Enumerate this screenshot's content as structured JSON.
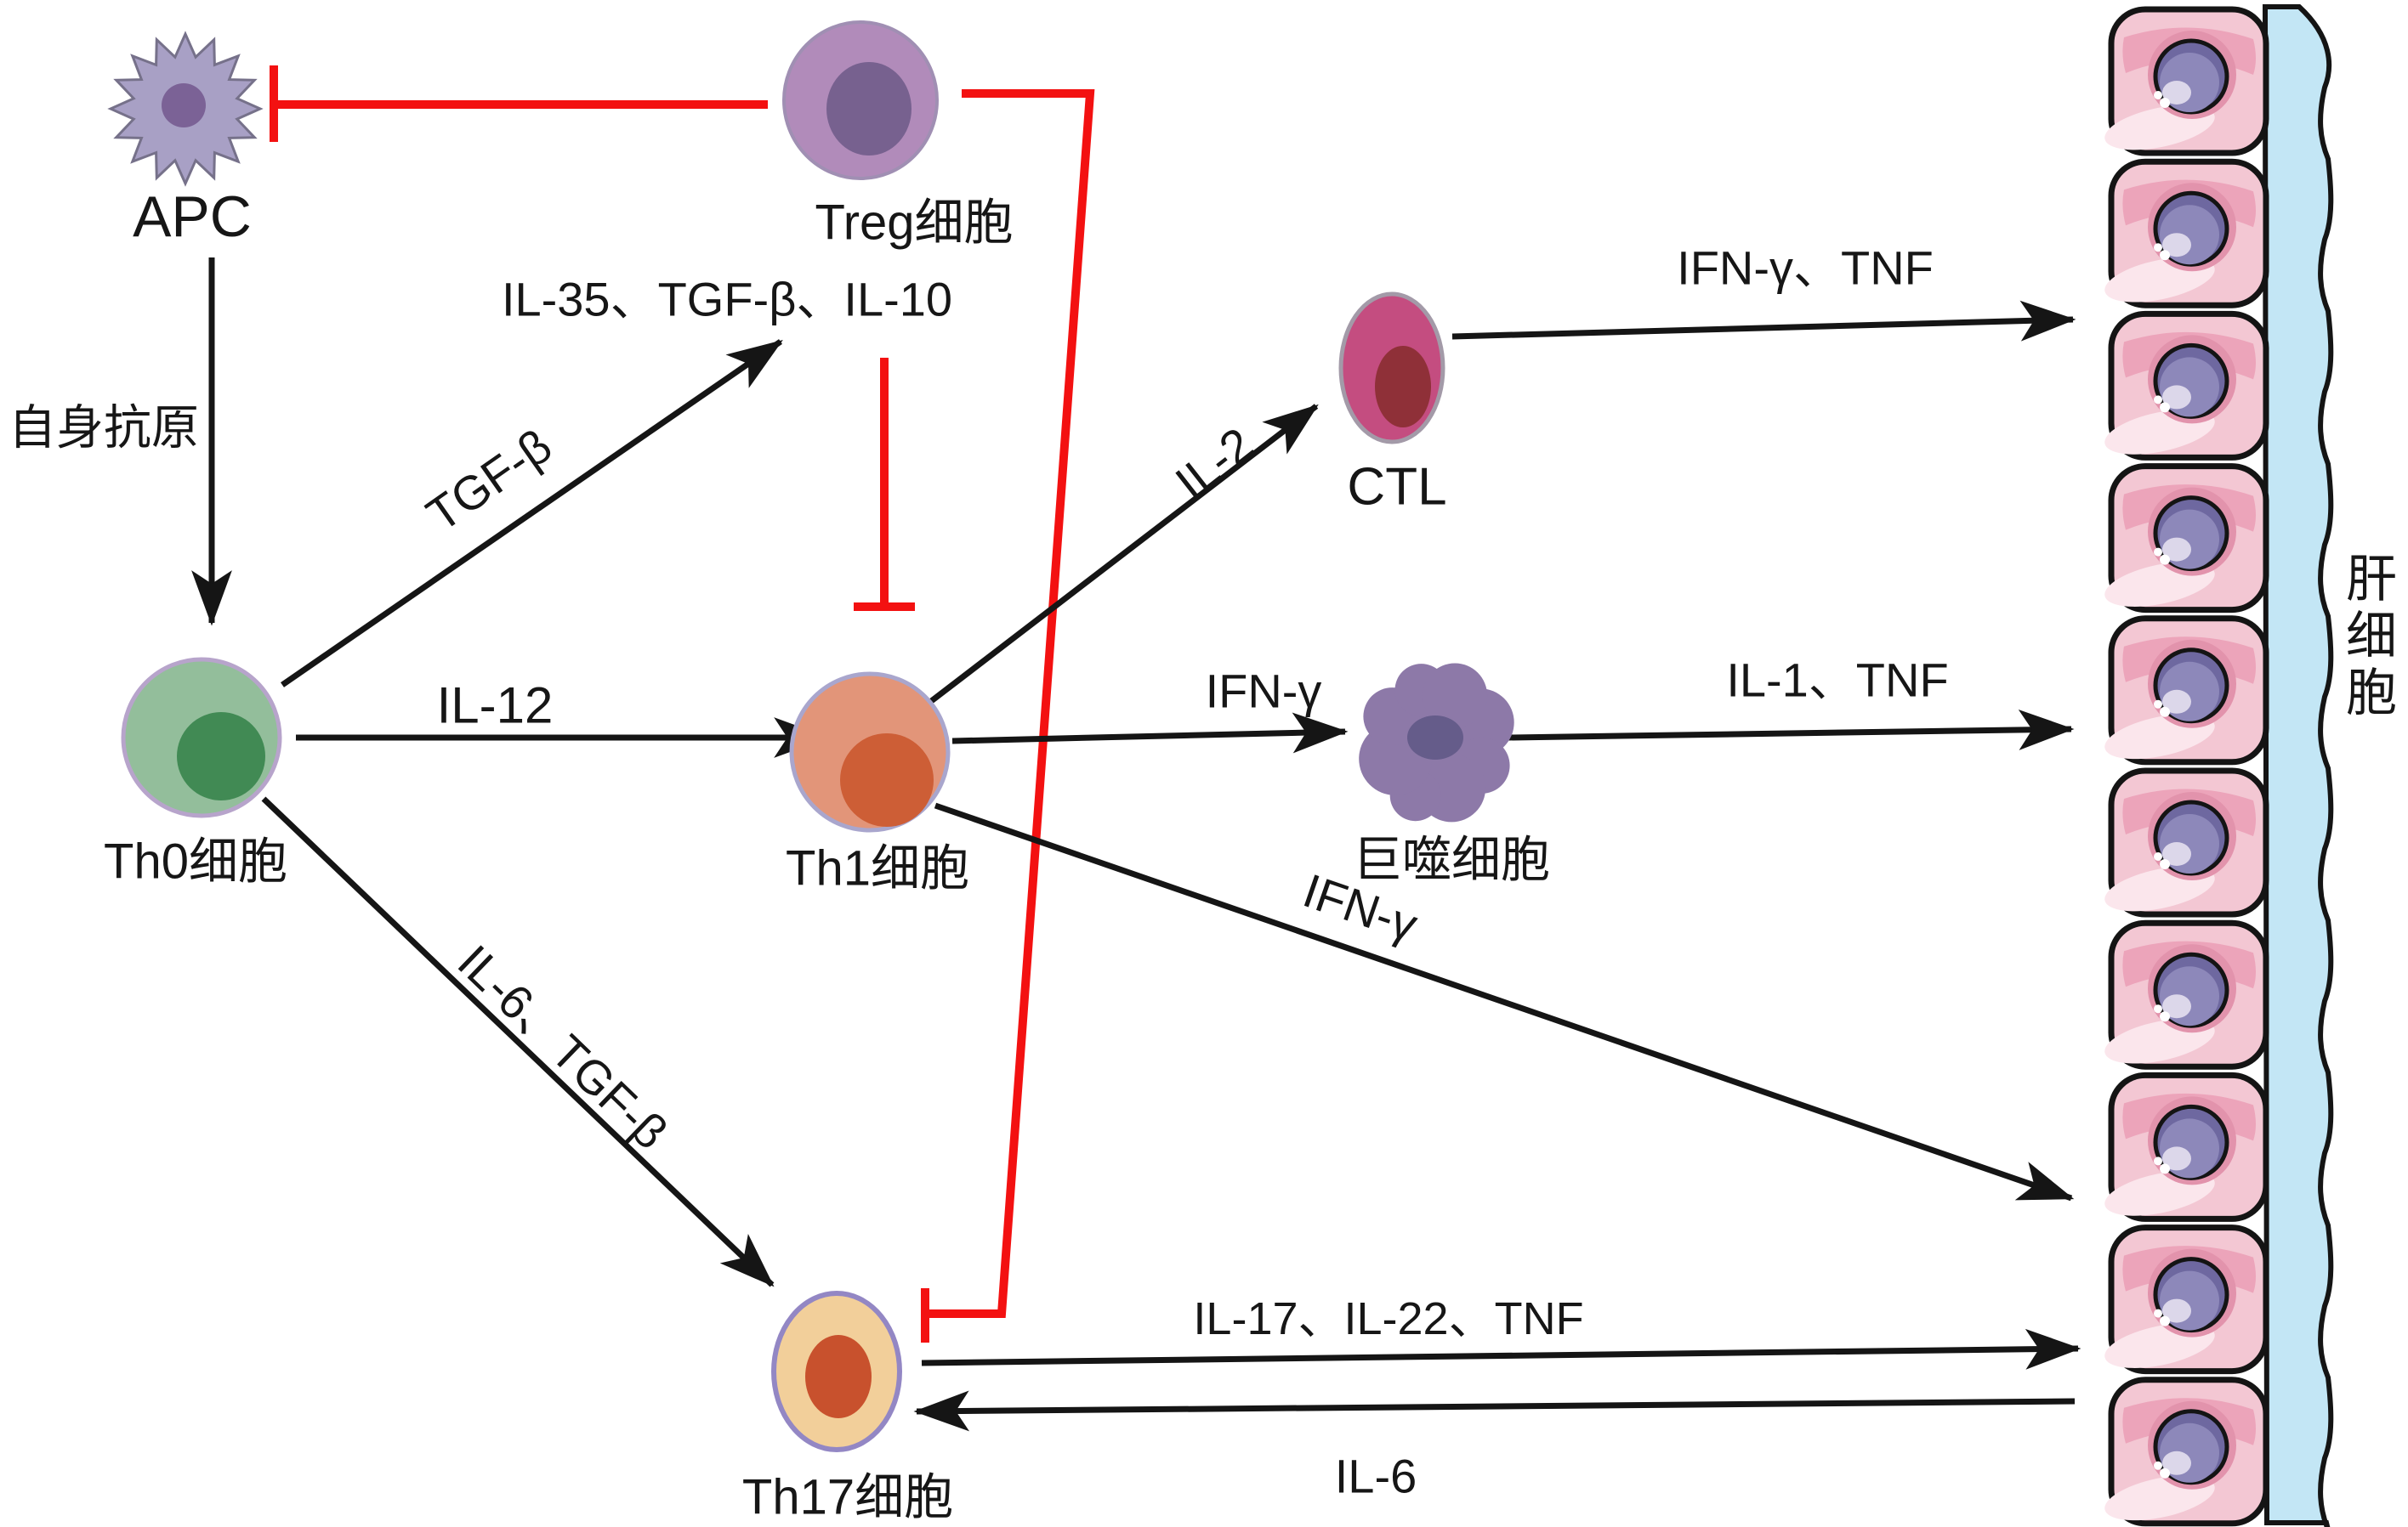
{
  "colors": {
    "background": "#ffffff",
    "line_black": "#151515",
    "inhibit_red": "#f31111",
    "apc_body": "#a8a0c5",
    "apc_nucleus": "#7b6296",
    "treg_body": "#b18bba",
    "treg_nucleus": "#77618f",
    "th0_body": "#93be9b",
    "th0_nucleus": "#418a54",
    "th0_outline": "#b7a4cb",
    "th1_body": "#e29579",
    "th1_nucleus": "#cd5e36",
    "th1_outline": "#a9a6cd",
    "th17_body": "#f2cf9a",
    "th17_nucleus": "#c8512d",
    "th17_outline": "#9387c4",
    "ctl_body": "#c44d80",
    "ctl_nucleus": "#8f3038",
    "ctl_outline": "#a39aa8",
    "macrophage_body": "#8d79a8",
    "macrophage_nucleus": "#655c8a",
    "liver_cell_body": "#f3c7d3",
    "liver_cell_accent": "#eca4ba",
    "liver_cell_light": "#fbe6ec",
    "liver_nucleus_ring": "#e293ac",
    "liver_nucleus": "#8d88ba",
    "liver_nucleus_dark": "#6e68a0",
    "liver_nucleus_highlight": "#dcd7ea",
    "sinusoid_blue": "#c3e6f5"
  },
  "cells": {
    "apc": {
      "label": "APC"
    },
    "treg": {
      "label": "Treg细胞",
      "cytokines": "IL-35、TGF-β、IL-10"
    },
    "th0": {
      "label": "Th0细胞"
    },
    "th1": {
      "label": "Th1细胞"
    },
    "th17": {
      "label": "Th17细胞"
    },
    "ctl": {
      "label": "CTL"
    },
    "macrophage": {
      "label": "巨噬细胞"
    },
    "hepatocyte": {
      "label": "肝细胞"
    }
  },
  "edges": {
    "apc_to_th0": {
      "label": "自身抗原"
    },
    "th0_to_treg": {
      "label": "TGF-β"
    },
    "th0_to_th1": {
      "label": "IL-12"
    },
    "th0_to_th17": {
      "label": "IL-6、TGF-β"
    },
    "th1_to_ctl": {
      "label": "IL-2"
    },
    "th1_to_macrophage": {
      "label": "IFN-γ"
    },
    "th1_to_hepatocyte": {
      "label": "IFN-γ"
    },
    "ctl_to_hepatocyte": {
      "label": "IFN-γ、TNF"
    },
    "macrophage_to_hepatocyte": {
      "label": "IL-1、TNF"
    },
    "th17_to_hepatocyte": {
      "label": "IL-17、IL-22、TNF"
    },
    "hepatocyte_to_th17": {
      "label": "IL-6"
    }
  },
  "liver": {
    "cell_count": 10
  }
}
